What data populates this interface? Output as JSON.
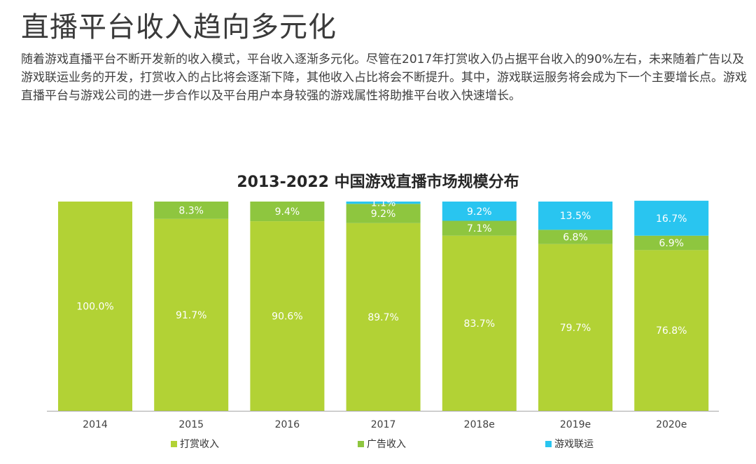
{
  "page": {
    "title": "直播平台收入趋向多元化",
    "intro": "随着游戏直播平台不断开发新的收入模式，平台收入逐渐多元化。尽管在2017年打赏收入仍占据平台收入的90%左右，未来随着广告以及游戏联运业务的开发，打赏收入的占比将会逐渐下降，其他收入占比将会不断提升。其中，游戏联运服务将会成为下一个主要增长点。游戏直播平台与游戏公司的进一步合作以及平台用户本身较强的游戏属性将助推平台收入快速增长。"
  },
  "chart_data": {
    "type": "bar",
    "stacked": true,
    "normalized": true,
    "title": "2013-2022 中国游戏直播市场规模分布",
    "categories": [
      "2014",
      "2015",
      "2016",
      "2017",
      "2018e",
      "2019e",
      "2020e"
    ],
    "series": [
      {
        "name": "打赏收入",
        "color": "#b2d235",
        "values": [
          100.0,
          91.7,
          90.6,
          89.7,
          83.7,
          79.7,
          76.8
        ]
      },
      {
        "name": "广告收入",
        "color": "#8ec63f",
        "values": [
          0,
          8.3,
          9.4,
          9.2,
          7.1,
          6.8,
          6.9
        ]
      },
      {
        "name": "游戏联运",
        "color": "#29c5f0",
        "values": [
          0,
          0,
          0,
          1.1,
          9.2,
          13.5,
          16.7
        ]
      }
    ],
    "ylim": [
      0,
      100
    ],
    "grid": false,
    "legend_position": "bottom"
  }
}
